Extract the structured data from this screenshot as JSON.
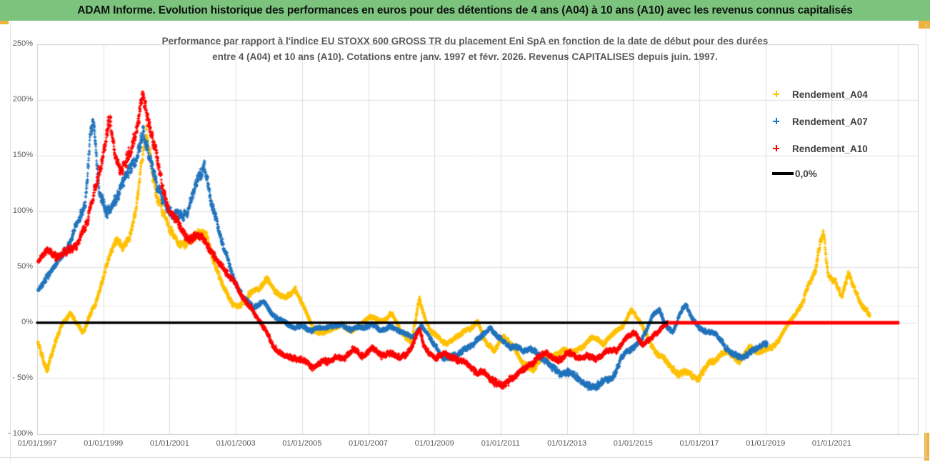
{
  "header": {
    "title": "ADAM Informe. Evolution historique des performances en euros pour des détentions de 4 ans (A04) à 10 ans (A10) avec les revenus connus capitalisés",
    "bg_color": "#7cc47e"
  },
  "chart": {
    "title_line1": "Performance par rapport à l'indice EU STOXX 600 GROSS TR  du placement Eni SpA en fonction de la date de début pour des durées",
    "title_line2": "entre 4 (A04) et 10 ans (A10).  Cotations entre janv. 1997 et févr. 2026. Revenus CAPITALISES depuis juin. 1997.",
    "accent_border_color": "#ecb23c"
  },
  "chart_data": {
    "type": "scatter",
    "marker": "plus",
    "grid": true,
    "legend_position": "right",
    "x_axis": {
      "start_year": 1997,
      "end_year": 2023.6,
      "gridline_interval_years": 2,
      "tick_labels": [
        "01/01/1997",
        "01/01/1999",
        "01/01/2001",
        "01/01/2003",
        "01/01/2005",
        "01/01/2007",
        "01/01/2009",
        "01/01/2011",
        "01/01/2013",
        "01/01/2015",
        "01/01/2017",
        "01/01/2019",
        "01/01/2021"
      ],
      "tick_years": [
        1997,
        1999,
        2001,
        2003,
        2005,
        2007,
        2009,
        2011,
        2013,
        2015,
        2017,
        2019,
        2021
      ]
    },
    "y_axis": {
      "min": -100,
      "max": 250,
      "tick_step": 50,
      "unit": "%",
      "tick_labels": [
        "250%",
        "200%",
        "150%",
        "100%",
        "50%",
        "0%",
        "- 50%",
        "- 100%"
      ],
      "tick_values": [
        250,
        200,
        150,
        100,
        50,
        0,
        -50,
        -100
      ],
      "extra_faint_line_pct": 15.5
    },
    "series": [
      {
        "name": "Rendement_A04",
        "color": "#FFC000",
        "start_year": 1997.0,
        "end_year": 2022.15,
        "waypoints": [
          [
            1997.0,
            -15
          ],
          [
            1997.15,
            -30
          ],
          [
            1997.3,
            -43
          ],
          [
            1997.5,
            -22
          ],
          [
            1997.75,
            -2
          ],
          [
            1998.0,
            8
          ],
          [
            1998.2,
            -2
          ],
          [
            1998.4,
            -10
          ],
          [
            1998.6,
            8
          ],
          [
            1998.8,
            22
          ],
          [
            1999.0,
            42
          ],
          [
            1999.2,
            62
          ],
          [
            1999.4,
            72
          ],
          [
            1999.6,
            68
          ],
          [
            1999.8,
            78
          ],
          [
            2000.0,
            105
          ],
          [
            2000.15,
            140
          ],
          [
            2000.3,
            165
          ],
          [
            2000.45,
            140
          ],
          [
            2000.6,
            115
          ],
          [
            2000.8,
            98
          ],
          [
            2001.0,
            82
          ],
          [
            2001.3,
            70
          ],
          [
            2001.6,
            78
          ],
          [
            2001.9,
            85
          ],
          [
            2002.1,
            82
          ],
          [
            2002.35,
            55
          ],
          [
            2002.6,
            35
          ],
          [
            2002.9,
            17
          ],
          [
            2003.1,
            15
          ],
          [
            2003.4,
            27
          ],
          [
            2003.7,
            30
          ],
          [
            2003.95,
            40
          ],
          [
            2004.2,
            28
          ],
          [
            2004.5,
            20
          ],
          [
            2004.8,
            28
          ],
          [
            2005.1,
            10
          ],
          [
            2005.35,
            -6
          ],
          [
            2005.6,
            -10
          ],
          [
            2005.9,
            -5
          ],
          [
            2006.2,
            0
          ],
          [
            2006.5,
            -8
          ],
          [
            2006.8,
            -3
          ],
          [
            2007.1,
            6
          ],
          [
            2007.4,
            2
          ],
          [
            2007.7,
            8
          ],
          [
            2008.0,
            -8
          ],
          [
            2008.3,
            -18
          ],
          [
            2008.55,
            22
          ],
          [
            2008.7,
            5
          ],
          [
            2008.9,
            -10
          ],
          [
            2009.2,
            -15
          ],
          [
            2009.5,
            -18
          ],
          [
            2009.8,
            -12
          ],
          [
            2010.1,
            -5
          ],
          [
            2010.3,
            2
          ],
          [
            2010.55,
            -15
          ],
          [
            2010.8,
            -22
          ],
          [
            2011.1,
            -14
          ],
          [
            2011.4,
            -22
          ],
          [
            2011.7,
            -38
          ],
          [
            2012.0,
            -40
          ],
          [
            2012.3,
            -30
          ],
          [
            2012.6,
            -32
          ],
          [
            2012.9,
            -22
          ],
          [
            2013.2,
            -28
          ],
          [
            2013.5,
            -18
          ],
          [
            2013.8,
            -12
          ],
          [
            2014.1,
            -20
          ],
          [
            2014.4,
            -12
          ],
          [
            2014.7,
            -2
          ],
          [
            2014.95,
            12
          ],
          [
            2015.2,
            2
          ],
          [
            2015.5,
            -15
          ],
          [
            2015.8,
            -30
          ],
          [
            2016.1,
            -38
          ],
          [
            2016.4,
            -48
          ],
          [
            2016.7,
            -45
          ],
          [
            2017.0,
            -50
          ],
          [
            2017.3,
            -35
          ],
          [
            2017.6,
            -32
          ],
          [
            2017.9,
            -25
          ],
          [
            2018.2,
            -32
          ],
          [
            2018.5,
            -22
          ],
          [
            2018.8,
            -28
          ],
          [
            2019.1,
            -22
          ],
          [
            2019.4,
            -15
          ],
          [
            2019.65,
            -2
          ],
          [
            2019.9,
            8
          ],
          [
            2020.1,
            14
          ],
          [
            2020.3,
            32
          ],
          [
            2020.5,
            43
          ],
          [
            2020.65,
            70
          ],
          [
            2020.75,
            80
          ],
          [
            2020.9,
            42
          ],
          [
            2021.1,
            38
          ],
          [
            2021.3,
            20
          ],
          [
            2021.5,
            43
          ],
          [
            2021.7,
            30
          ],
          [
            2021.9,
            15
          ],
          [
            2022.05,
            12
          ],
          [
            2022.15,
            8
          ]
        ]
      },
      {
        "name": "Rendement_A07",
        "color": "#2173BC",
        "start_year": 1997.0,
        "end_year": 2019.05,
        "waypoints": [
          [
            1997.0,
            28
          ],
          [
            1997.3,
            40
          ],
          [
            1997.6,
            55
          ],
          [
            1997.9,
            70
          ],
          [
            1998.2,
            85
          ],
          [
            1998.45,
            105
          ],
          [
            1998.6,
            165
          ],
          [
            1998.7,
            178
          ],
          [
            1998.85,
            120
          ],
          [
            1999.1,
            102
          ],
          [
            1999.4,
            118
          ],
          [
            1999.7,
            132
          ],
          [
            2000.0,
            150
          ],
          [
            2000.2,
            172
          ],
          [
            2000.35,
            155
          ],
          [
            2000.55,
            135
          ],
          [
            2000.8,
            112
          ],
          [
            2001.1,
            95
          ],
          [
            2001.4,
            100
          ],
          [
            2001.7,
            112
          ],
          [
            2001.95,
            128
          ],
          [
            2002.05,
            138
          ],
          [
            2002.25,
            105
          ],
          [
            2002.5,
            78
          ],
          [
            2002.75,
            58
          ],
          [
            2003.0,
            38
          ],
          [
            2003.25,
            20
          ],
          [
            2003.5,
            15
          ],
          [
            2003.8,
            18
          ],
          [
            2004.1,
            8
          ],
          [
            2004.4,
            2
          ],
          [
            2004.7,
            -4
          ],
          [
            2005.0,
            -1
          ],
          [
            2005.3,
            -8
          ],
          [
            2005.6,
            -4
          ],
          [
            2005.9,
            -2
          ],
          [
            2006.2,
            -1
          ],
          [
            2006.5,
            -8
          ],
          [
            2006.8,
            -4
          ],
          [
            2007.1,
            -2
          ],
          [
            2007.4,
            -9
          ],
          [
            2007.7,
            -4
          ],
          [
            2008.0,
            -10
          ],
          [
            2008.3,
            -14
          ],
          [
            2008.6,
            -4
          ],
          [
            2008.9,
            -16
          ],
          [
            2009.2,
            -28
          ],
          [
            2009.5,
            -30
          ],
          [
            2009.8,
            -28
          ],
          [
            2010.1,
            -22
          ],
          [
            2010.4,
            -12
          ],
          [
            2010.7,
            -4
          ],
          [
            2011.0,
            -16
          ],
          [
            2011.3,
            -25
          ],
          [
            2011.6,
            -22
          ],
          [
            2011.9,
            -25
          ],
          [
            2012.2,
            -32
          ],
          [
            2012.5,
            -38
          ],
          [
            2012.8,
            -44
          ],
          [
            2013.1,
            -42
          ],
          [
            2013.4,
            -48
          ],
          [
            2013.7,
            -58
          ],
          [
            2013.85,
            -60
          ],
          [
            2014.1,
            -50
          ],
          [
            2014.4,
            -45
          ],
          [
            2014.7,
            -30
          ],
          [
            2015.0,
            -22
          ],
          [
            2015.3,
            -12
          ],
          [
            2015.6,
            5
          ],
          [
            2015.8,
            12
          ],
          [
            2016.0,
            -2
          ],
          [
            2016.2,
            -10
          ],
          [
            2016.45,
            8
          ],
          [
            2016.6,
            14
          ],
          [
            2016.8,
            2
          ],
          [
            2017.0,
            -4
          ],
          [
            2017.2,
            -8
          ],
          [
            2017.5,
            -12
          ],
          [
            2017.8,
            -25
          ],
          [
            2018.0,
            -28
          ],
          [
            2018.3,
            -32
          ],
          [
            2018.6,
            -28
          ],
          [
            2018.85,
            -24
          ],
          [
            2019.05,
            -20
          ]
        ]
      },
      {
        "name": "Rendement_A10",
        "color": "#FF0000",
        "start_year": 1997.0,
        "end_year": 2016.05,
        "flat_zero_segment": {
          "from": 2016.1,
          "to": 2023.0,
          "value": 0
        },
        "waypoints": [
          [
            1997.0,
            52
          ],
          [
            1997.3,
            62
          ],
          [
            1997.6,
            58
          ],
          [
            1997.9,
            62
          ],
          [
            1998.2,
            72
          ],
          [
            1998.5,
            95
          ],
          [
            1998.8,
            128
          ],
          [
            1999.05,
            158
          ],
          [
            1999.2,
            188
          ],
          [
            1999.35,
            150
          ],
          [
            1999.55,
            138
          ],
          [
            1999.8,
            158
          ],
          [
            2000.05,
            185
          ],
          [
            2000.2,
            215
          ],
          [
            2000.35,
            190
          ],
          [
            2000.55,
            158
          ],
          [
            2000.8,
            125
          ],
          [
            2001.0,
            100
          ],
          [
            2001.3,
            85
          ],
          [
            2001.6,
            78
          ],
          [
            2001.9,
            82
          ],
          [
            2002.1,
            72
          ],
          [
            2002.4,
            58
          ],
          [
            2002.7,
            42
          ],
          [
            2003.0,
            32
          ],
          [
            2003.2,
            20
          ],
          [
            2003.5,
            10
          ],
          [
            2003.8,
            -4
          ],
          [
            2004.1,
            -18
          ],
          [
            2004.4,
            -26
          ],
          [
            2004.7,
            -30
          ],
          [
            2005.0,
            -33
          ],
          [
            2005.3,
            -38
          ],
          [
            2005.6,
            -32
          ],
          [
            2005.9,
            -34
          ],
          [
            2006.2,
            -30
          ],
          [
            2006.5,
            -26
          ],
          [
            2006.8,
            -30
          ],
          [
            2007.1,
            -24
          ],
          [
            2007.4,
            -30
          ],
          [
            2007.7,
            -26
          ],
          [
            2008.0,
            -30
          ],
          [
            2008.3,
            -25
          ],
          [
            2008.55,
            -6
          ],
          [
            2008.7,
            -20
          ],
          [
            2009.0,
            -32
          ],
          [
            2009.3,
            -28
          ],
          [
            2009.6,
            -34
          ],
          [
            2009.9,
            -38
          ],
          [
            2010.2,
            -42
          ],
          [
            2010.5,
            -48
          ],
          [
            2010.8,
            -54
          ],
          [
            2011.05,
            -58
          ],
          [
            2011.2,
            -55
          ],
          [
            2011.5,
            -48
          ],
          [
            2011.8,
            -40
          ],
          [
            2012.1,
            -32
          ],
          [
            2012.4,
            -28
          ],
          [
            2012.7,
            -32
          ],
          [
            2013.0,
            -26
          ],
          [
            2013.3,
            -31
          ],
          [
            2013.6,
            -26
          ],
          [
            2013.9,
            -30
          ],
          [
            2014.2,
            -24
          ],
          [
            2014.5,
            -26
          ],
          [
            2014.8,
            -14
          ],
          [
            2015.05,
            -10
          ],
          [
            2015.3,
            -18
          ],
          [
            2015.55,
            -12
          ],
          [
            2015.8,
            -6
          ],
          [
            2016.0,
            0
          ]
        ]
      },
      {
        "name": "0,0%",
        "type": "line",
        "color": "#000000",
        "value": 0,
        "from": 1997.0,
        "to": 2023.0
      }
    ]
  }
}
